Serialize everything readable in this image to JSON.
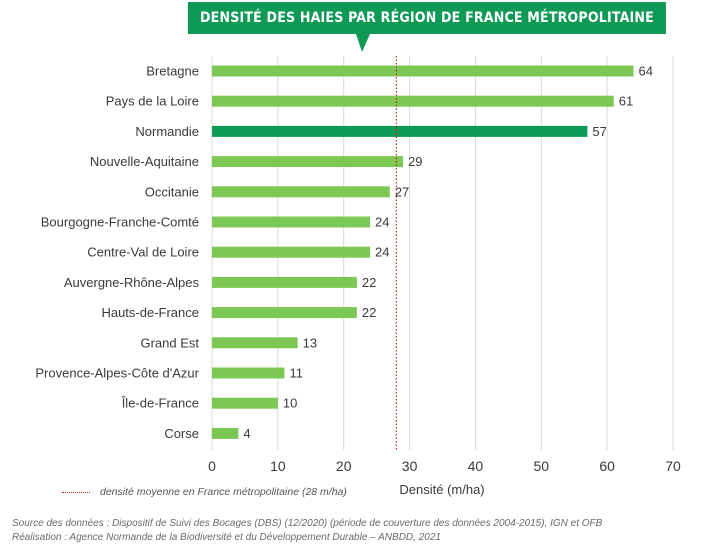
{
  "chart_data": {
    "type": "bar",
    "orientation": "horizontal",
    "title": "DENSITÉ DES HAIES PAR RÉGION DE FRANCE MÉTROPOLITAINE",
    "categories": [
      "Bretagne",
      "Pays de la Loire",
      "Normandie",
      "Nouvelle-Aquitaine",
      "Occitanie",
      "Bourgogne-Franche-Comté",
      "Centre-Val de Loire",
      "Auvergne-Rhône-Alpes",
      "Hauts-de-France",
      "Grand Est",
      "Provence-Alpes-Côte d'Azur",
      "Île-de-France",
      "Corse"
    ],
    "values": [
      64,
      61,
      57,
      29,
      27,
      24,
      24,
      22,
      22,
      13,
      11,
      10,
      4
    ],
    "highlight": "Normandie",
    "xlabel": "Densité (m/ha)",
    "ylabel": "",
    "xlim": [
      0,
      70
    ],
    "xticks": [
      0,
      10,
      20,
      30,
      40,
      50,
      60,
      70
    ],
    "grid": "vertical",
    "reference_line": {
      "value": 28,
      "label": "densité moyenne en France métropolitaine (28 m/ha)"
    }
  },
  "colors": {
    "bar": "#7dc855",
    "bar_highlight": "#0e9a55",
    "banner": "#0e9a55",
    "reference_line": "#c0282d",
    "grid": "#d9d9d9"
  },
  "footer": {
    "source": "Source des données : Dispositif de Suivi des Bocages (DBS) (12/2020) (période de couverture des données 2004-2015), IGN et OFB",
    "credit": "Réalisation : Agence Normande de la Biodiversité et du Développement Durable – ANBDD, 2021"
  }
}
